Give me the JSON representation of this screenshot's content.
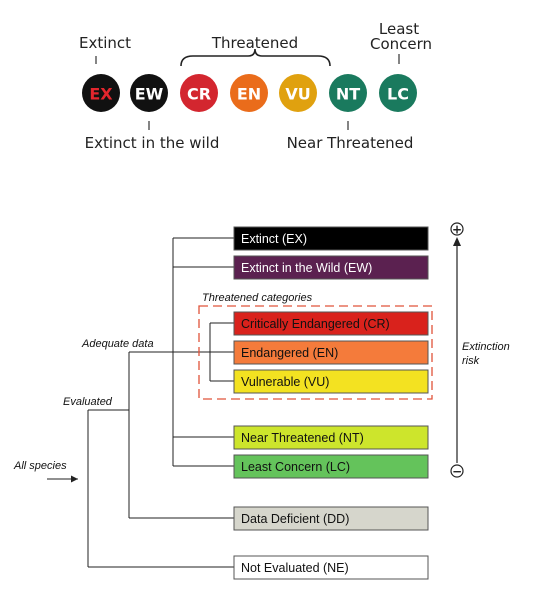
{
  "top_legend": {
    "labels": {
      "extinct": "Extinct",
      "threatened": "Threatened",
      "least_concern_line1": "Least",
      "least_concern_line2": "Concern",
      "extinct_in_the_wild": "Extinct in the wild",
      "near_threatened": "Near Threatened"
    },
    "circles": [
      {
        "code": "EX",
        "fill": "#111111",
        "text_color": "#e3262d"
      },
      {
        "code": "EW",
        "fill": "#111111",
        "text_color": "#ffffff"
      },
      {
        "code": "CR",
        "fill": "#d3262f",
        "text_color": "#ffffff"
      },
      {
        "code": "EN",
        "fill": "#ea6c1b",
        "text_color": "#ffffff"
      },
      {
        "code": "VU",
        "fill": "#e0a10f",
        "text_color": "#ffffff"
      },
      {
        "code": "NT",
        "fill": "#1a7a5e",
        "text_color": "#ffffff"
      },
      {
        "code": "LC",
        "fill": "#1a7a5e",
        "text_color": "#ffffff"
      }
    ]
  },
  "tree": {
    "all_species": "All species",
    "evaluated": "Evaluated",
    "adequate_data": "Adequate data",
    "threatened_categories": "Threatened categories",
    "extinction_risk_line1": "Extinction",
    "extinction_risk_line2": "risk",
    "plus_symbol": "+",
    "minus_symbol": "−",
    "boxes": [
      {
        "label": "Extinct (EX)",
        "fill": "#000000",
        "text_color": "#ffffff"
      },
      {
        "label": "Extinct in the Wild (EW)",
        "fill": "#5b2150",
        "text_color": "#ffffff"
      },
      {
        "label": "Critically Endangered (CR)",
        "fill": "#d9221c",
        "text_color": "#111111"
      },
      {
        "label": "Endangered (EN)",
        "fill": "#f47b3b",
        "text_color": "#111111"
      },
      {
        "label": "Vulnerable (VU)",
        "fill": "#f3e221",
        "text_color": "#111111"
      },
      {
        "label": "Near Threatened (NT)",
        "fill": "#cde52c",
        "text_color": "#111111"
      },
      {
        "label": "Least Concern (LC)",
        "fill": "#64c35b",
        "text_color": "#111111"
      },
      {
        "label": "Data Deficient (DD)",
        "fill": "#d6d6cc",
        "text_color": "#111111"
      },
      {
        "label": "Not Evaluated (NE)",
        "fill": "#ffffff",
        "text_color": "#111111"
      }
    ],
    "colors": {
      "dashed_border": "#e0533a",
      "lines": "#222222"
    }
  }
}
